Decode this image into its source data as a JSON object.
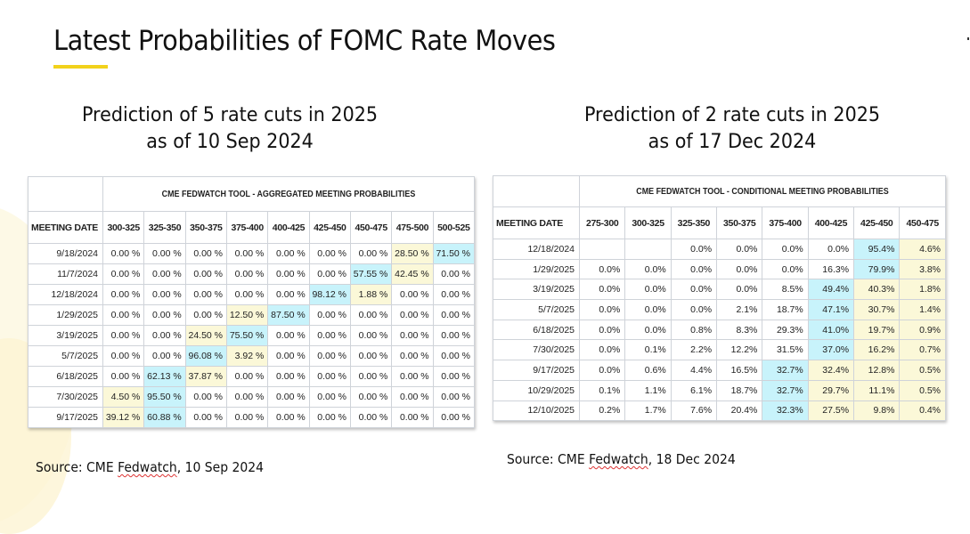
{
  "page": {
    "title": "Latest Probabilities of FOMC Rate Moves",
    "accent_color": "#f2d21b"
  },
  "left": {
    "subtitle_line1": "Prediction of 5 rate cuts in 2025",
    "subtitle_line2": "as of 10 Sep 2024",
    "table_title": "CME FEDWATCH TOOL - AGGREGATED MEETING PROBABILITIES",
    "date_header": "MEETING DATE",
    "columns": [
      "300-325",
      "325-350",
      "350-375",
      "375-400",
      "400-425",
      "425-450",
      "450-475",
      "475-500",
      "500-525"
    ],
    "rows": [
      {
        "date": "9/18/2024",
        "values": [
          "0.00 %",
          "0.00 %",
          "0.00 %",
          "0.00 %",
          "0.00 %",
          "0.00 %",
          "0.00 %",
          "28.50 %",
          "71.50 %"
        ],
        "hl": [
          "",
          "",
          "",
          "",
          "",
          "",
          "",
          "y",
          "b"
        ]
      },
      {
        "date": "11/7/2024",
        "values": [
          "0.00 %",
          "0.00 %",
          "0.00 %",
          "0.00 %",
          "0.00 %",
          "0.00 %",
          "57.55 %",
          "42.45 %",
          "0.00 %"
        ],
        "hl": [
          "",
          "",
          "",
          "",
          "",
          "",
          "b",
          "y",
          ""
        ]
      },
      {
        "date": "12/18/2024",
        "values": [
          "0.00 %",
          "0.00 %",
          "0.00 %",
          "0.00 %",
          "0.00 %",
          "98.12 %",
          "1.88 %",
          "0.00 %",
          "0.00 %"
        ],
        "hl": [
          "",
          "",
          "",
          "",
          "",
          "b",
          "y",
          "",
          ""
        ]
      },
      {
        "date": "1/29/2025",
        "values": [
          "0.00 %",
          "0.00 %",
          "0.00 %",
          "12.50 %",
          "87.50 %",
          "0.00 %",
          "0.00 %",
          "0.00 %",
          "0.00 %"
        ],
        "hl": [
          "",
          "",
          "",
          "y",
          "b",
          "",
          "",
          "",
          ""
        ]
      },
      {
        "date": "3/19/2025",
        "values": [
          "0.00 %",
          "0.00 %",
          "24.50 %",
          "75.50 %",
          "0.00 %",
          "0.00 %",
          "0.00 %",
          "0.00 %",
          "0.00 %"
        ],
        "hl": [
          "",
          "",
          "y",
          "b",
          "",
          "",
          "",
          "",
          ""
        ]
      },
      {
        "date": "5/7/2025",
        "values": [
          "0.00 %",
          "0.00 %",
          "96.08 %",
          "3.92 %",
          "0.00 %",
          "0.00 %",
          "0.00 %",
          "0.00 %",
          "0.00 %"
        ],
        "hl": [
          "",
          "",
          "b",
          "y",
          "",
          "",
          "",
          "",
          ""
        ]
      },
      {
        "date": "6/18/2025",
        "values": [
          "0.00 %",
          "62.13 %",
          "37.87 %",
          "0.00 %",
          "0.00 %",
          "0.00 %",
          "0.00 %",
          "0.00 %",
          "0.00 %"
        ],
        "hl": [
          "",
          "b",
          "y",
          "",
          "",
          "",
          "",
          "",
          ""
        ]
      },
      {
        "date": "7/30/2025",
        "values": [
          "4.50 %",
          "95.50 %",
          "0.00 %",
          "0.00 %",
          "0.00 %",
          "0.00 %",
          "0.00 %",
          "0.00 %",
          "0.00 %"
        ],
        "hl": [
          "y",
          "b",
          "",
          "",
          "",
          "",
          "",
          "",
          ""
        ]
      },
      {
        "date": "9/17/2025",
        "values": [
          "39.12 %",
          "60.88 %",
          "0.00 %",
          "0.00 %",
          "0.00 %",
          "0.00 %",
          "0.00 %",
          "0.00 %",
          "0.00 %"
        ],
        "hl": [
          "y",
          "b",
          "",
          "",
          "",
          "",
          "",
          "",
          ""
        ]
      }
    ],
    "source_prefix": "Source: CME ",
    "source_word": "Fedwatch",
    "source_suffix": ", 10 Sep 2024"
  },
  "right": {
    "subtitle_line1": "Prediction of 2 rate cuts in 2025",
    "subtitle_line2": "as of 17 Dec 2024",
    "table_title": "CME FEDWATCH TOOL - CONDITIONAL MEETING PROBABILITIES",
    "date_header": "MEETING DATE",
    "columns": [
      "275-300",
      "300-325",
      "325-350",
      "350-375",
      "375-400",
      "400-425",
      "425-450",
      "450-475"
    ],
    "rows": [
      {
        "date": "12/18/2024",
        "values": [
          "",
          "",
          "0.0%",
          "0.0%",
          "0.0%",
          "0.0%",
          "95.4%",
          "4.6%"
        ],
        "hl": [
          "",
          "",
          "",
          "",
          "",
          "",
          "b",
          "y"
        ]
      },
      {
        "date": "1/29/2025",
        "values": [
          "0.0%",
          "0.0%",
          "0.0%",
          "0.0%",
          "0.0%",
          "16.3%",
          "79.9%",
          "3.8%"
        ],
        "hl": [
          "",
          "",
          "",
          "",
          "",
          "",
          "b",
          "y"
        ]
      },
      {
        "date": "3/19/2025",
        "values": [
          "0.0%",
          "0.0%",
          "0.0%",
          "0.0%",
          "8.5%",
          "49.4%",
          "40.3%",
          "1.8%"
        ],
        "hl": [
          "",
          "",
          "",
          "",
          "",
          "b",
          "y",
          "y"
        ]
      },
      {
        "date": "5/7/2025",
        "values": [
          "0.0%",
          "0.0%",
          "0.0%",
          "2.1%",
          "18.7%",
          "47.1%",
          "30.7%",
          "1.4%"
        ],
        "hl": [
          "",
          "",
          "",
          "",
          "",
          "b",
          "y",
          "y"
        ]
      },
      {
        "date": "6/18/2025",
        "values": [
          "0.0%",
          "0.0%",
          "0.8%",
          "8.3%",
          "29.3%",
          "41.0%",
          "19.7%",
          "0.9%"
        ],
        "hl": [
          "",
          "",
          "",
          "",
          "",
          "b",
          "y",
          "y"
        ]
      },
      {
        "date": "7/30/2025",
        "values": [
          "0.0%",
          "0.1%",
          "2.2%",
          "12.2%",
          "31.5%",
          "37.0%",
          "16.2%",
          "0.7%"
        ],
        "hl": [
          "",
          "",
          "",
          "",
          "",
          "b",
          "y",
          "y"
        ]
      },
      {
        "date": "9/17/2025",
        "values": [
          "0.0%",
          "0.6%",
          "4.4%",
          "16.5%",
          "32.7%",
          "32.4%",
          "12.8%",
          "0.5%"
        ],
        "hl": [
          "",
          "",
          "",
          "",
          "b",
          "y",
          "y",
          "y"
        ]
      },
      {
        "date": "10/29/2025",
        "values": [
          "0.1%",
          "1.1%",
          "6.1%",
          "18.7%",
          "32.7%",
          "29.7%",
          "11.1%",
          "0.5%"
        ],
        "hl": [
          "",
          "",
          "",
          "",
          "b",
          "y",
          "y",
          "y"
        ]
      },
      {
        "date": "12/10/2025",
        "values": [
          "0.2%",
          "1.7%",
          "7.6%",
          "20.4%",
          "32.3%",
          "27.5%",
          "9.8%",
          "0.4%"
        ],
        "hl": [
          "",
          "",
          "",
          "",
          "b",
          "y",
          "y",
          "y"
        ]
      }
    ],
    "source_prefix": "Source: CME ",
    "source_word": "Fedwatch",
    "source_suffix": ", 18 Dec 2024"
  },
  "highlight_colors": {
    "y": "#fbf8d8",
    "b": "#c8f3fb"
  }
}
